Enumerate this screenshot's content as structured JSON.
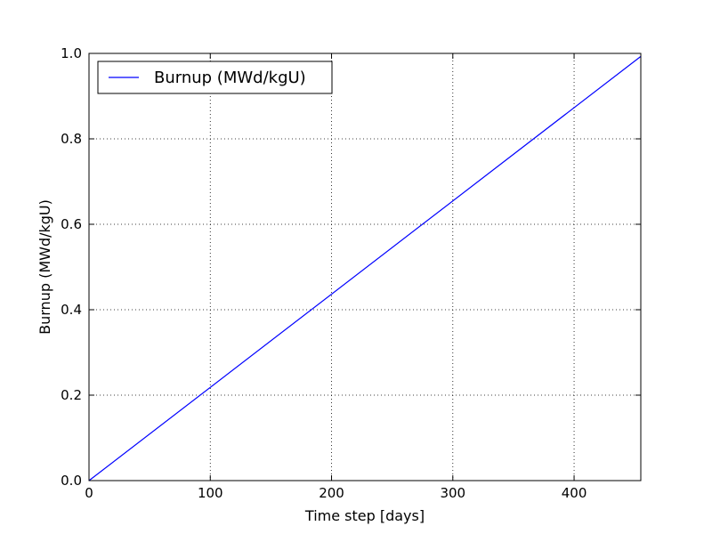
{
  "chart_data": {
    "type": "line",
    "xlabel": "Time step [days]",
    "ylabel": "Burnup (MWd/kgU)",
    "xlim": [
      0,
      455
    ],
    "ylim": [
      0.0,
      1.0
    ],
    "xticks": [
      0,
      100,
      200,
      300,
      400
    ],
    "xtick_labels": [
      "0",
      "100",
      "200",
      "300",
      "400"
    ],
    "yticks": [
      0.0,
      0.2,
      0.4,
      0.6,
      0.8,
      1.0
    ],
    "ytick_labels": [
      "0.0",
      "0.2",
      "0.4",
      "0.6",
      "0.8",
      "1.0"
    ],
    "grid": true,
    "legend_position": "top-left",
    "series": [
      {
        "name": "Burnup (MWd/kgU)",
        "color": "#0000ff",
        "x": [
          0,
          455
        ],
        "y": [
          0.0,
          0.993
        ]
      }
    ]
  }
}
